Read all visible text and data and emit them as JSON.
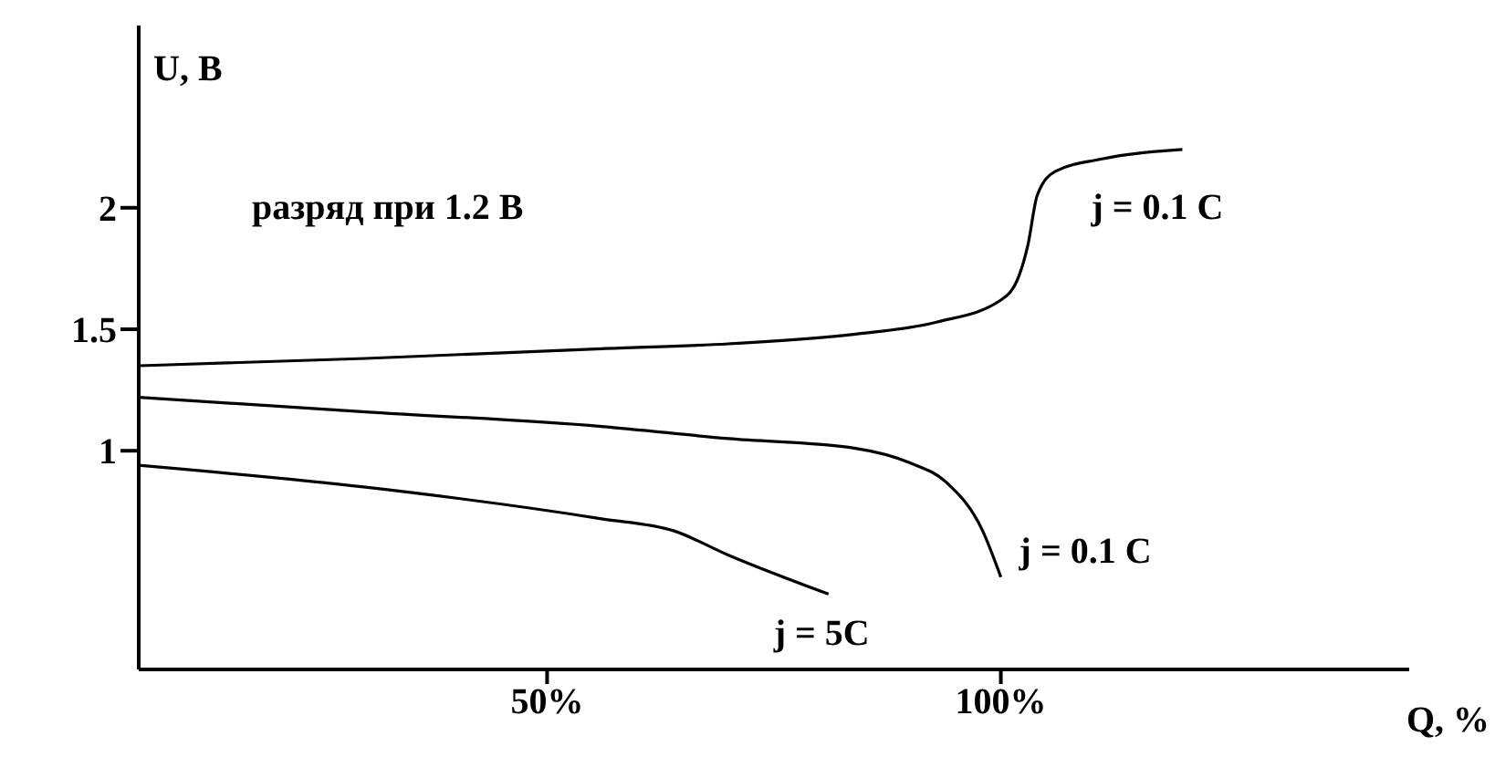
{
  "chart_data": {
    "type": "line",
    "xlabel": "Q, %",
    "ylabel": "U, В",
    "annotations": [
      "разряд при 1.2 В"
    ],
    "xlim": [
      5,
      145
    ],
    "xticks": [
      {
        "value": 50,
        "label": "50%"
      },
      {
        "value": 100,
        "label": "100%"
      }
    ],
    "ylim": [
      0.1,
      2.75
    ],
    "yticks": [
      1,
      1.5,
      2
    ],
    "grid": false,
    "legend": false,
    "marker": "none",
    "line_style": "solid",
    "series": [
      {
        "name": "j = 0.1 C",
        "color": "#000000",
        "x": [
          5,
          30,
          56,
          70,
          84,
          93,
          100,
          102,
          103,
          104,
          106,
          111,
          120
        ],
        "values": [
          1.35,
          1.38,
          1.42,
          1.44,
          1.48,
          1.53,
          1.62,
          1.72,
          1.85,
          2.05,
          2.15,
          2.2,
          2.24
        ]
      },
      {
        "name": "j = 0.1 C",
        "color": "#000000",
        "x": [
          5,
          30,
          56,
          70,
          84,
          90,
          94,
          98,
          100
        ],
        "values": [
          1.22,
          1.16,
          1.1,
          1.05,
          1.01,
          0.95,
          0.87,
          0.67,
          0.48
        ]
      },
      {
        "name": "j = 5C",
        "color": "#000000",
        "x": [
          5,
          30,
          56,
          64,
          70,
          81
        ],
        "values": [
          0.94,
          0.85,
          0.72,
          0.67,
          0.57,
          0.41
        ]
      }
    ]
  }
}
